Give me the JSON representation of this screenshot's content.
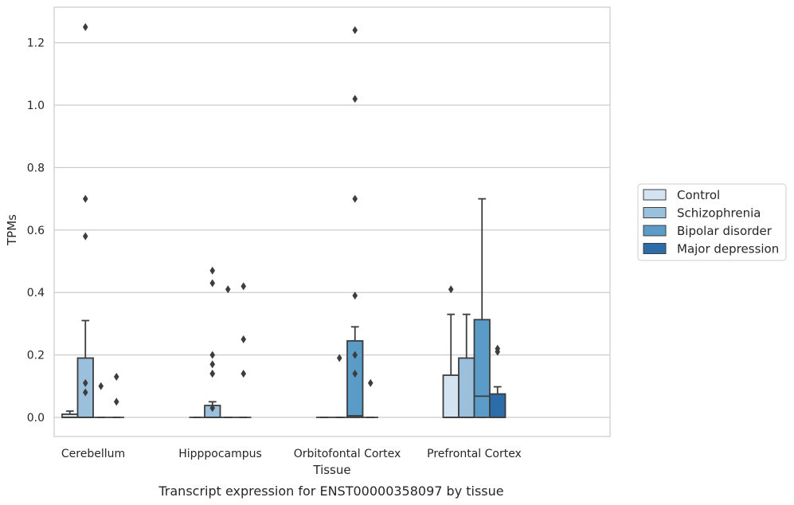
{
  "chart_data": {
    "type": "box",
    "xlabel": "Tissue",
    "ylabel": "TPMs",
    "caption": "Transcript expression for ENST00000358097 by tissue",
    "ylim": [
      -0.06,
      1.32
    ],
    "yticks": [
      0.0,
      0.2,
      0.4,
      0.6,
      0.8,
      1.0,
      1.2
    ],
    "ytick_labels": [
      "0.0",
      "0.2",
      "0.4",
      "0.6",
      "0.8",
      "1.0",
      "1.2"
    ],
    "grid": "horizontal",
    "legend_position": "outside-right",
    "categories": [
      "Cerebellum",
      "Hipppocampus",
      "Orbitofontal Cortex",
      "Prefrontal Cortex"
    ],
    "series": [
      {
        "name": "Control",
        "color": "#d3e3f1",
        "boxes": [
          {
            "q1": 0.0,
            "median": 0.0,
            "q3": 0.01,
            "whisker_low": 0.0,
            "whisker_high": 0.02,
            "outliers": []
          },
          {
            "q1": 0.0,
            "median": 0.0,
            "q3": 0.0,
            "whisker_low": 0.0,
            "whisker_high": 0.0,
            "outliers": []
          },
          {
            "q1": 0.0,
            "median": 0.0,
            "q3": 0.0,
            "whisker_low": 0.0,
            "whisker_high": 0.0,
            "outliers": []
          },
          {
            "q1": 0.0,
            "median": 0.0,
            "q3": 0.135,
            "whisker_low": 0.0,
            "whisker_high": 0.33,
            "outliers": [
              0.41
            ]
          }
        ]
      },
      {
        "name": "Schizophrenia",
        "color": "#9ac0dc",
        "boxes": [
          {
            "q1": 0.0,
            "median": 0.0,
            "q3": 0.19,
            "whisker_low": 0.0,
            "whisker_high": 0.31,
            "outliers": [
              1.25,
              0.7,
              0.58,
              0.11,
              0.08
            ]
          },
          {
            "q1": 0.0,
            "median": 0.0,
            "q3": 0.038,
            "whisker_low": 0.0,
            "whisker_high": 0.05,
            "outliers": [
              0.43,
              0.47,
              0.17,
              0.14,
              0.2,
              0.14,
              0.03
            ]
          },
          {
            "q1": 0.0,
            "median": 0.0,
            "q3": 0.0,
            "whisker_low": 0.0,
            "whisker_high": 0.0,
            "outliers": [
              0.19
            ]
          },
          {
            "q1": 0.0,
            "median": 0.0,
            "q3": 0.19,
            "whisker_low": 0.0,
            "whisker_high": 0.33,
            "outliers": []
          }
        ]
      },
      {
        "name": "Bipolar disorder",
        "color": "#5b9bc8",
        "boxes": [
          {
            "q1": 0.0,
            "median": 0.0,
            "q3": 0.0,
            "whisker_low": 0.0,
            "whisker_high": 0.0,
            "outliers": [
              0.1
            ]
          },
          {
            "q1": 0.0,
            "median": 0.0,
            "q3": 0.0,
            "whisker_low": 0.0,
            "whisker_high": 0.0,
            "outliers": [
              0.41
            ]
          },
          {
            "q1": 0.0,
            "median": 0.005,
            "q3": 0.245,
            "whisker_low": 0.0,
            "whisker_high": 0.29,
            "outliers": [
              1.24,
              1.02,
              0.7,
              0.39,
              0.2,
              0.14
            ]
          },
          {
            "q1": 0.0,
            "median": 0.068,
            "q3": 0.313,
            "whisker_low": 0.0,
            "whisker_high": 0.7,
            "outliers": []
          }
        ]
      },
      {
        "name": "Major depression",
        "color": "#2c6ca8",
        "boxes": [
          {
            "q1": 0.0,
            "median": 0.0,
            "q3": 0.0,
            "whisker_low": 0.0,
            "whisker_high": 0.0,
            "outliers": [
              0.13,
              0.05
            ]
          },
          {
            "q1": 0.0,
            "median": 0.0,
            "q3": 0.0,
            "whisker_low": 0.0,
            "whisker_high": 0.0,
            "outliers": [
              0.42,
              0.25,
              0.14
            ]
          },
          {
            "q1": 0.0,
            "median": 0.0,
            "q3": 0.0,
            "whisker_low": 0.0,
            "whisker_high": 0.0,
            "outliers": [
              0.11
            ]
          },
          {
            "q1": 0.0,
            "median": 0.0,
            "q3": 0.075,
            "whisker_low": 0.0,
            "whisker_high": 0.098,
            "outliers": [
              0.22,
              0.21
            ]
          }
        ]
      }
    ]
  }
}
